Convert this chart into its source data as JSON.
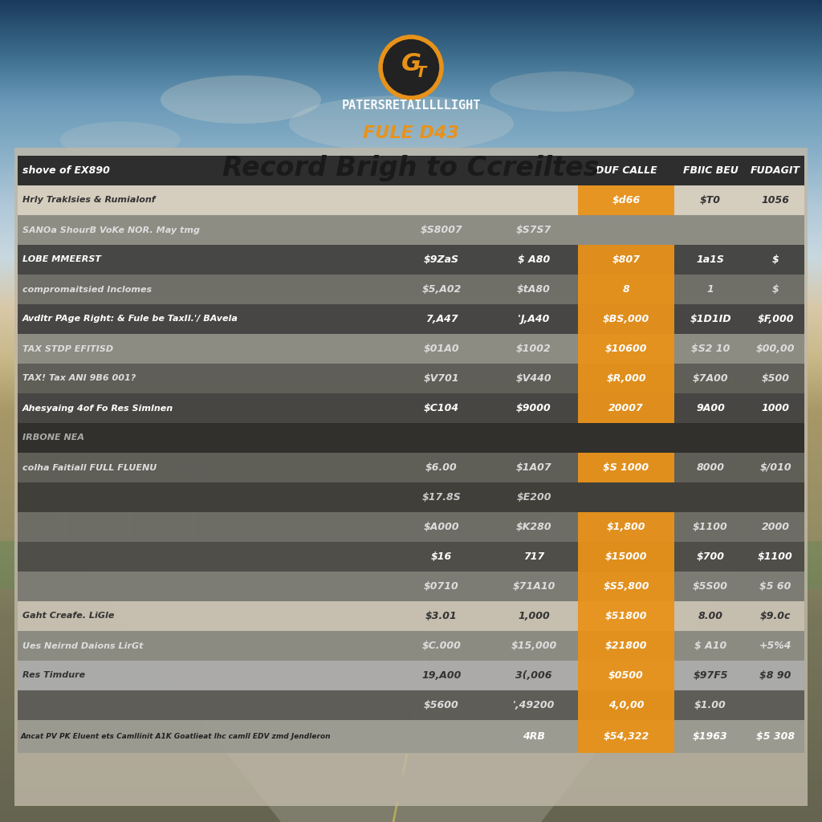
{
  "title": "Record Brigh to Ccreiltes",
  "subtitle": "FULE D43",
  "logo_text": "GT",
  "company_text": "PATERSRETAILLLLIGHT",
  "header_label": "shove of EX890",
  "header_cols": [
    "DUF CALLE",
    "FBIIC BEU",
    "FUDAGIT"
  ],
  "rows": [
    {
      "label": "Hrly Traklsies & Rumialonf",
      "col1": "",
      "col2": "",
      "col3": "$d66",
      "col4": "$T0",
      "col5": "1056",
      "row_color": "#D8D0C0",
      "fg": "#333333"
    },
    {
      "label": "SANOa ShourB VoKe NOR. May tmg",
      "col1": "$S8007",
      "col2": "$S7S7",
      "col3": "",
      "col4": "",
      "col5": "",
      "row_color": "#888880",
      "fg": "#DDDDDD"
    },
    {
      "label": "LOBE MMEERST",
      "col1": "$9ZaS",
      "col2": "$ A80",
      "col3": "$807",
      "col4": "1a1S",
      "col5": "$",
      "row_color": "#3a3a3a",
      "fg": "#FFFFFF"
    },
    {
      "label": "compromaitsied Inclomes",
      "col1": "$5,A02",
      "col2": "$tA80",
      "col3": "8",
      "col4": "1",
      "col5": "$",
      "row_color": "#666660",
      "fg": "#DDDDDD"
    },
    {
      "label": "Avdltr PAge Right: & Fule be TaxIl.'/ BAvela",
      "col1": "7,A47",
      "col2": "'J,A40",
      "col3": "$BS,000",
      "col4": "$1D1ID",
      "col5": "$F,000",
      "row_color": "#3a3a3a",
      "fg": "#FFFFFF"
    },
    {
      "label": "TAX STDP EFITISD",
      "col1": "$01A0",
      "col2": "$1002",
      "col3": "$10600",
      "col4": "$S2 10",
      "col5": "$00,00",
      "row_color": "#888880",
      "fg": "#DDDDDD"
    },
    {
      "label": "TAX! Tax ANI 9B6 001?",
      "col1": "$V701",
      "col2": "$V440",
      "col3": "$R,000",
      "col4": "$7A00",
      "col5": "$500",
      "row_color": "#555550",
      "fg": "#DDDDDD"
    },
    {
      "label": "Ahesyaing 4of Fo Res Simlnen",
      "col1": "$C104",
      "col2": "$9000",
      "col3": "20007",
      "col4": "9A00",
      "col5": "1000",
      "row_color": "#3a3a3a",
      "fg": "#FFFFFF"
    },
    {
      "label": "IRBONE NEA",
      "col1": "",
      "col2": "",
      "col3": "",
      "col4": "",
      "col5": "",
      "row_color": "#222220",
      "fg": "#AAAAAA"
    },
    {
      "label": "colha Faitiall FULL FLUENU",
      "col1": "$6.00",
      "col2": "$1A07",
      "col3": "$S 1000",
      "col4": "8000",
      "col5": "$/010",
      "row_color": "#555550",
      "fg": "#DDDDDD"
    },
    {
      "label": "",
      "col1": "$17.8S",
      "col2": "$E200",
      "col3": "",
      "col4": "",
      "col5": "",
      "row_color": "#333330",
      "fg": "#CCCCCC"
    },
    {
      "label": "",
      "col1": "$A000",
      "col2": "$K280",
      "col3": "$1,800",
      "col4": "$1100",
      "col5": "2000",
      "row_color": "#666660",
      "fg": "#DDDDDD"
    },
    {
      "label": "",
      "col1": "$16",
      "col2": "717",
      "col3": "$15000",
      "col4": "$700",
      "col5": "$1100",
      "row_color": "#444440",
      "fg": "#FFFFFF"
    },
    {
      "label": "",
      "col1": "$0710",
      "col2": "$71A10",
      "col3": "$S5,800",
      "col4": "$5S00",
      "col5": "$5 60",
      "row_color": "#777770",
      "fg": "#DDDDDD"
    },
    {
      "label": "Gaht Creafe. LiGle",
      "col1": "$3.01",
      "col2": "1,000",
      "col3": "$51800",
      "col4": "8.00",
      "col5": "$9.0c",
      "row_color": "#C8C0B0",
      "fg": "#333333"
    },
    {
      "label": "Ues Neirnd Daions LirGt",
      "col1": "$C.000",
      "col2": "$15,000",
      "col3": "$21800",
      "col4": "$ A10",
      "col5": "+5%4",
      "row_color": "#888880",
      "fg": "#DDDDDD"
    },
    {
      "label": "Res Timdure",
      "col1": "19,A00",
      "col2": "3(,006",
      "col3": "$0500",
      "col4": "$97F5",
      "col5": "$8 90",
      "row_color": "#AAAAAA",
      "fg": "#333333"
    },
    {
      "label": "",
      "col1": "$5600",
      "col2": "',49200",
      "col3": "4,0,00",
      "col4": "$1.00",
      "col5": "",
      "row_color": "#555550",
      "fg": "#DDDDDD"
    }
  ],
  "footer_label": "Ancat PV PK Eluent ets Camllinit A1K Goatlieat lhc camll EDV zmd Jendleron",
  "footer_col1": "4RB",
  "footer_col2": "$54,322",
  "footer_col3": "$1963",
  "footer_col4": "$5 308",
  "accent_orange": "#E8921A",
  "header_bg": "#2a2a2a",
  "title_color": "#1a1a1a",
  "logo_ring_color": "#E8921A",
  "sky_colors": [
    "#1a3a5c",
    "#3a6a8a",
    "#6a9ab8",
    "#8ab0c8",
    "#b0c8d8",
    "#c8d8e0",
    "#d8c8a8",
    "#c8b888",
    "#a89868"
  ],
  "cloud_color": "#e8e0d0",
  "road_color": "#8a8878",
  "grass_color": "#6a8858",
  "panel_bg": "#C8C0B0"
}
